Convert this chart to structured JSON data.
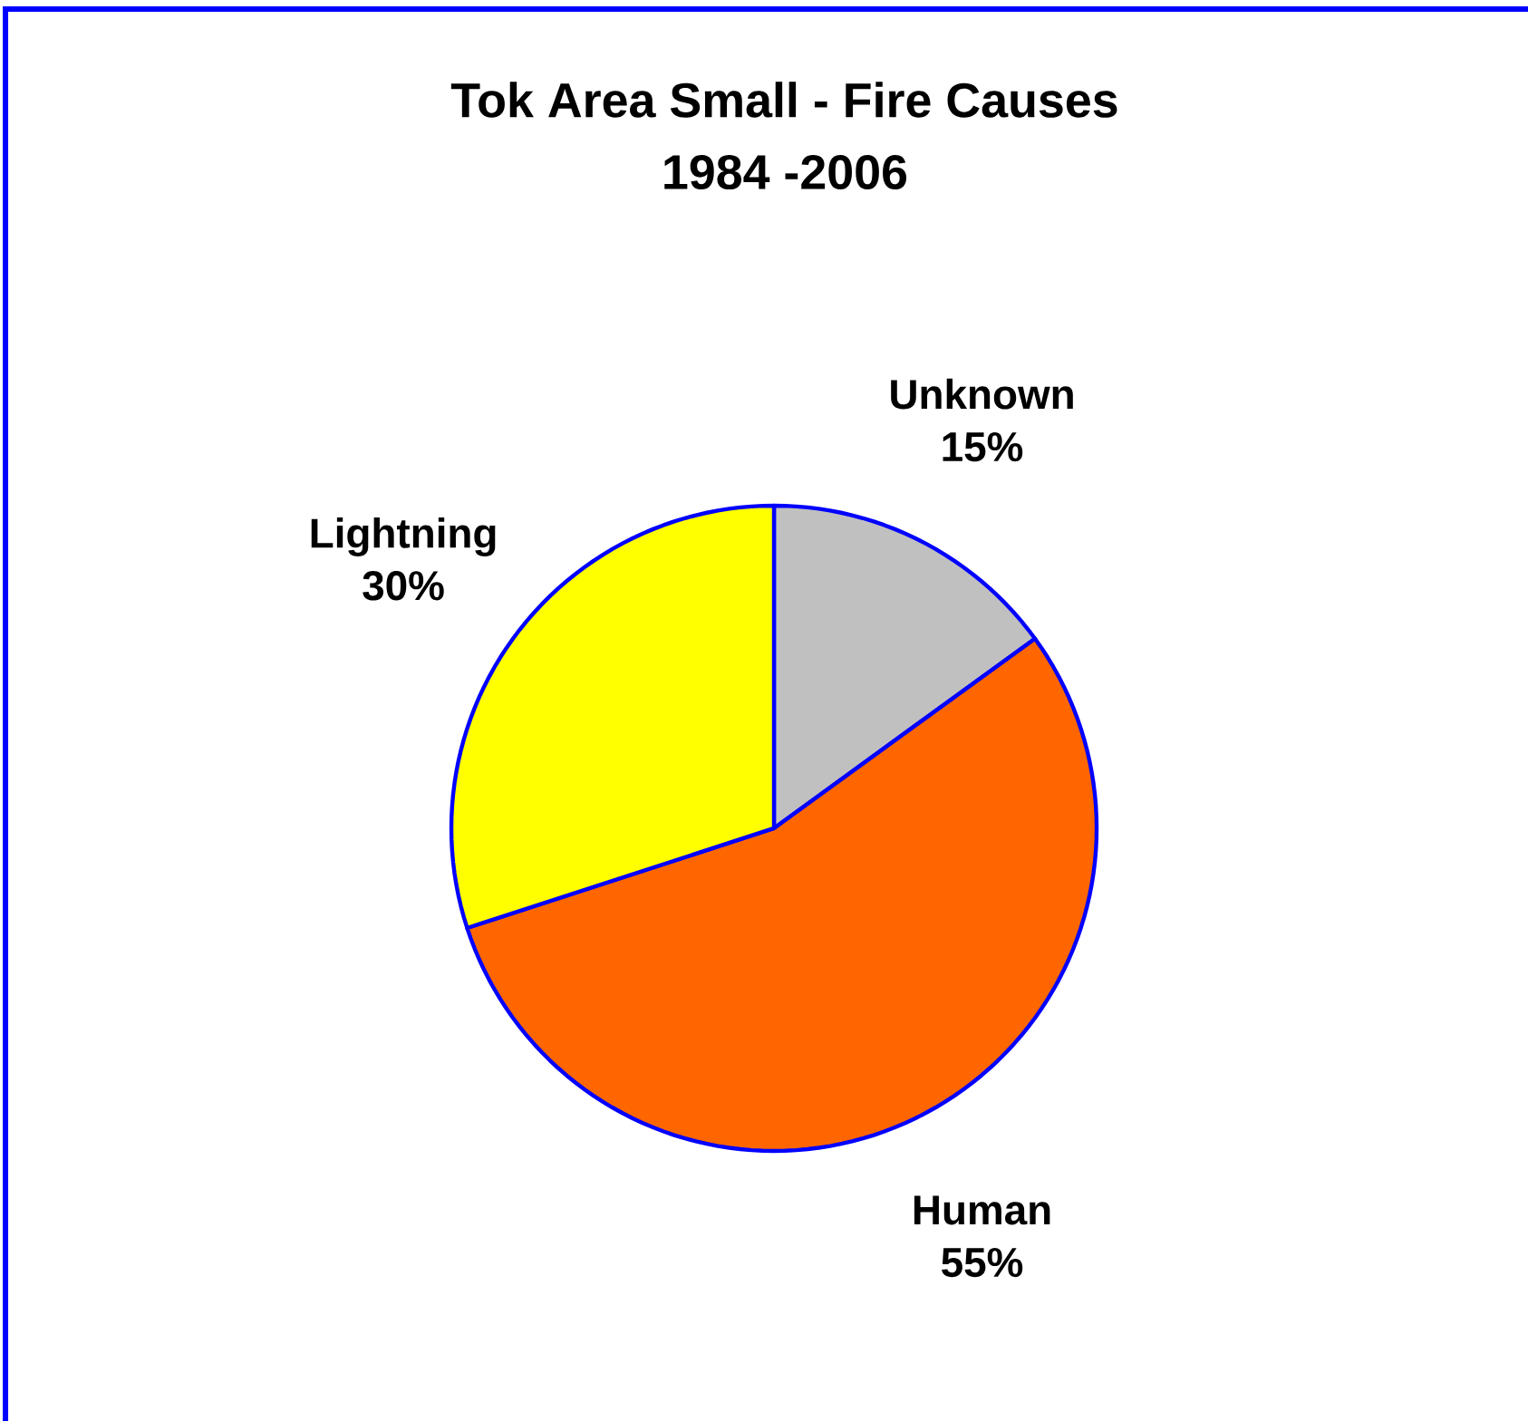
{
  "chart_data": {
    "type": "pie",
    "title": "Tok Area Small - Fire Causes",
    "subtitle": "1984 -2006",
    "categories": [
      "Unknown",
      "Human",
      "Lightning"
    ],
    "values": [
      15,
      55,
      30
    ],
    "value_labels": [
      "15%",
      "55%",
      "30%"
    ],
    "colors": [
      "#c0c0c0",
      "#ff6600",
      "#ffff00"
    ]
  }
}
